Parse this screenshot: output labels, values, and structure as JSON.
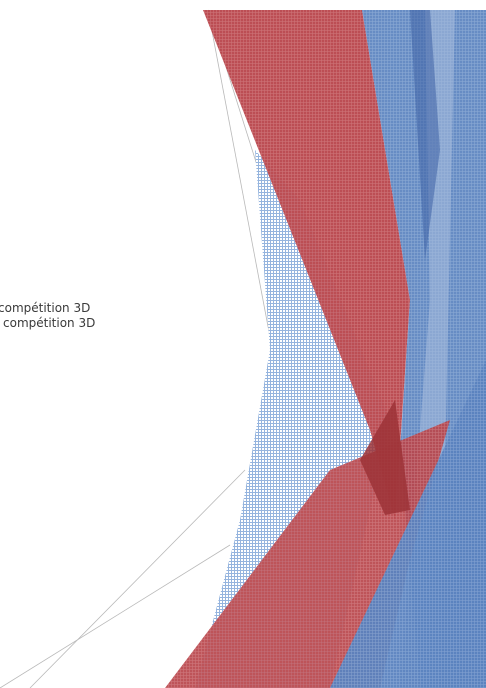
{
  "document": {
    "lines": [
      "compétition 3D",
      "compétition 3D"
    ]
  },
  "colors": {
    "red": "#b8454b",
    "red_dark": "#a23a40",
    "blue": "#5a82bf",
    "blue_light": "#9fb9dd",
    "blue_dark": "#3f63a5",
    "line": "#b9b9b9"
  }
}
